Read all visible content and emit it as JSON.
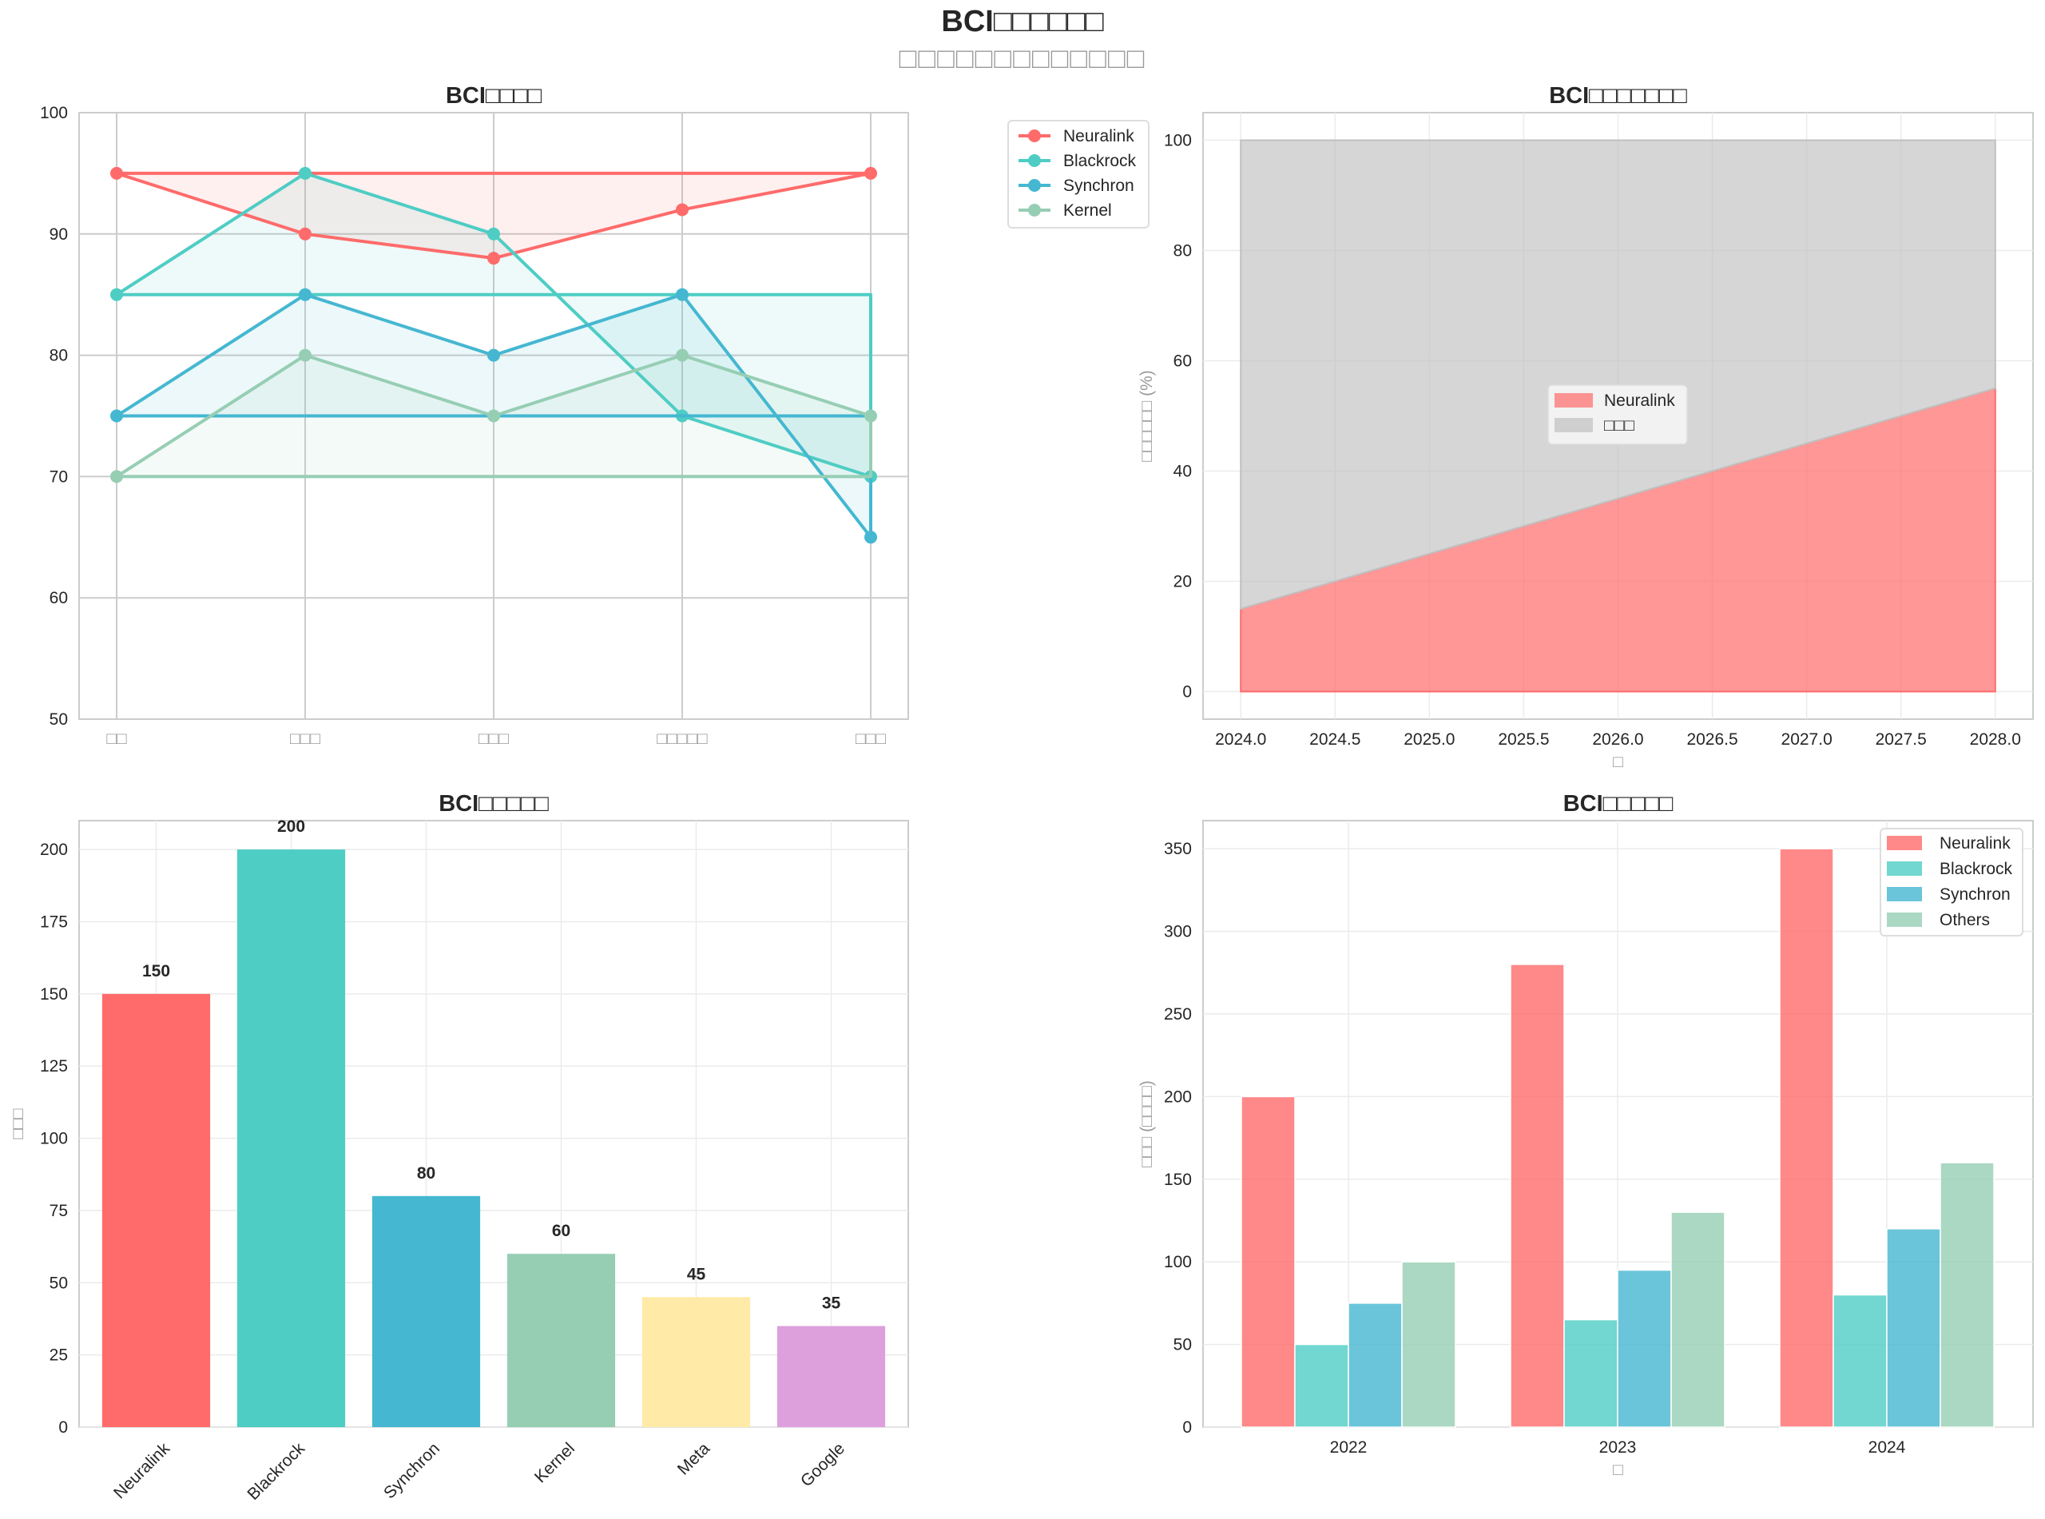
{
  "figure": {
    "title": "BCI□□□□□□",
    "subtitle": "□□□□□□□□□□□□□"
  },
  "chart_data": [
    {
      "id": "radar",
      "type": "line",
      "title": "BCI□□□□",
      "xlabel": "",
      "ylabel": "",
      "categories": [
        "□□",
        "□□□",
        "□□□",
        "□□□□□",
        "□□□"
      ],
      "ylim": [
        50,
        100
      ],
      "yticks": [
        50,
        60,
        70,
        80,
        90,
        100
      ],
      "closed": true,
      "filled": true,
      "grid": true,
      "legend": "outside-top-right",
      "series": [
        {
          "name": "Neuralink",
          "color": "#FF6B6B",
          "values": [
            95,
            90,
            88,
            92,
            95
          ]
        },
        {
          "name": "Blackrock",
          "color": "#4ECDC4",
          "values": [
            85,
            95,
            90,
            75,
            70
          ]
        },
        {
          "name": "Synchron",
          "color": "#45B7D1",
          "values": [
            75,
            85,
            80,
            85,
            65
          ]
        },
        {
          "name": "Kernel",
          "color": "#96CEB4",
          "values": [
            70,
            80,
            75,
            80,
            75
          ]
        }
      ]
    },
    {
      "id": "share",
      "type": "area",
      "title": "BCI□□□□□□□",
      "xlabel": "□",
      "ylabel": "□□□□□□ (%)",
      "x": [
        2024,
        2025,
        2026,
        2027,
        2028
      ],
      "xlim": [
        2023.8,
        2028.2
      ],
      "xticks": [
        "2024.0",
        "2024.5",
        "2025.0",
        "2025.5",
        "2026.0",
        "2026.5",
        "2027.0",
        "2027.5",
        "2028.0"
      ],
      "ylim": [
        -5,
        105
      ],
      "yticks": [
        0,
        20,
        40,
        60,
        80,
        100
      ],
      "stacked": true,
      "grid": true,
      "legend": "center",
      "series": [
        {
          "name": "Neuralink",
          "color": "#FF6B6B",
          "values": [
            15,
            25,
            35,
            45,
            55
          ]
        },
        {
          "name": "□□□",
          "color": "#C0C0C0",
          "values": [
            85,
            75,
            65,
            55,
            45
          ]
        }
      ]
    },
    {
      "id": "patents",
      "type": "bar",
      "title": "BCI□□□□□",
      "xlabel": "",
      "ylabel": "□□□",
      "categories": [
        "Neuralink",
        "Blackrock",
        "Synchron",
        "Kernel",
        "Meta",
        "Google"
      ],
      "values": [
        150,
        200,
        80,
        60,
        45,
        35
      ],
      "colors": [
        "#FF6B6B",
        "#4ECDC4",
        "#45B7D1",
        "#96CEB4",
        "#FFEAA7",
        "#DDA0DD"
      ],
      "ylim": [
        0,
        210
      ],
      "yticks": [
        0,
        25,
        50,
        75,
        100,
        125,
        150,
        175,
        200
      ],
      "data_labels": true,
      "grid": true
    },
    {
      "id": "investment",
      "type": "bar",
      "title": "BCI□□□□□",
      "xlabel": "□",
      "ylabel": "□□□ (□□□□)",
      "categories": [
        "2022",
        "2023",
        "2024"
      ],
      "ylim": [
        0,
        367
      ],
      "yticks": [
        0,
        50,
        100,
        150,
        200,
        250,
        300,
        350
      ],
      "grouped": true,
      "grid": true,
      "legend": "top-right",
      "series": [
        {
          "name": "Neuralink",
          "color": "#FF6B6B",
          "values": [
            200,
            280,
            350
          ]
        },
        {
          "name": "Blackrock",
          "color": "#4ECDC4",
          "values": [
            50,
            65,
            80
          ]
        },
        {
          "name": "Synchron",
          "color": "#45B7D1",
          "values": [
            75,
            95,
            120
          ]
        },
        {
          "name": "Others",
          "color": "#96CEB4",
          "values": [
            100,
            130,
            160
          ]
        }
      ]
    }
  ]
}
